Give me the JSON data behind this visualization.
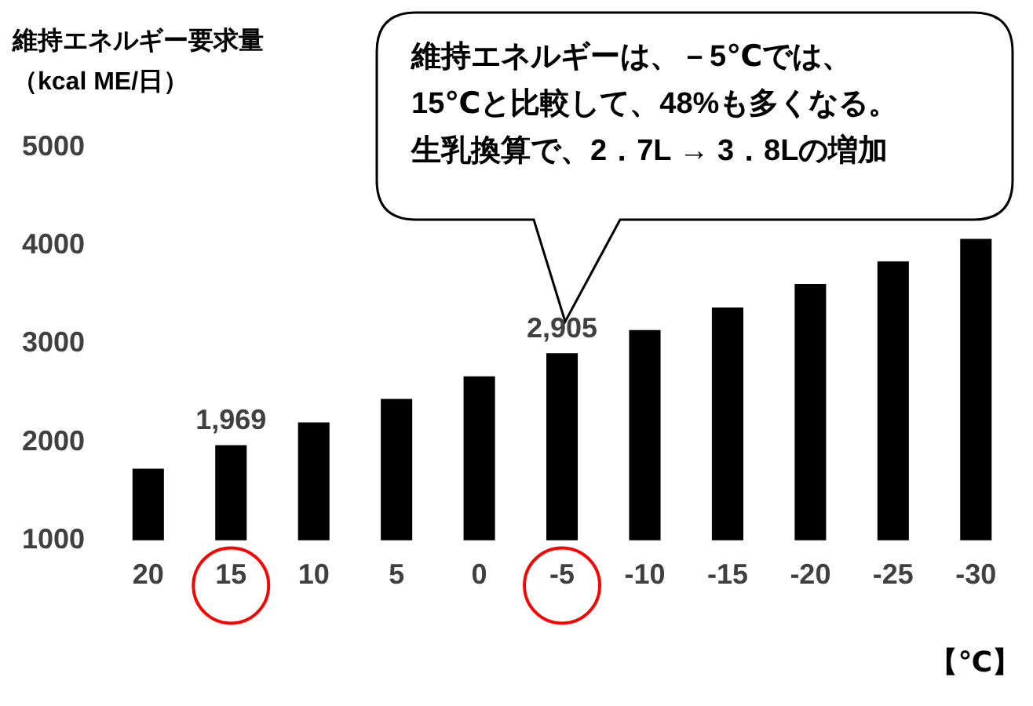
{
  "chart_data": {
    "type": "bar",
    "ylabel": "維持エネルギー要求量（kcal ME/日）",
    "xlabel": "【℃】",
    "categories": [
      "20",
      "15",
      "10",
      "5",
      "0",
      "-5",
      "-10",
      "-15",
      "-20",
      "-25",
      "-30"
    ],
    "values": [
      1730,
      1969,
      2200,
      2440,
      2670,
      2905,
      3140,
      3370,
      3610,
      3840,
      4070
    ],
    "value_labels": [
      null,
      "1,969",
      null,
      null,
      null,
      "2,905",
      null,
      null,
      null,
      null,
      null
    ],
    "color": "#000000",
    "ylim": [
      1000,
      5000
    ],
    "yticks": [
      1000,
      2000,
      3000,
      4000,
      5000
    ],
    "grid": false,
    "legend": false,
    "annotations": [
      "維持エネルギーは、－5℃では、",
      "15℃と比較して、48%も多くなる。",
      "生乳換算で、2．7L → 3．8Lの増加"
    ]
  }
}
